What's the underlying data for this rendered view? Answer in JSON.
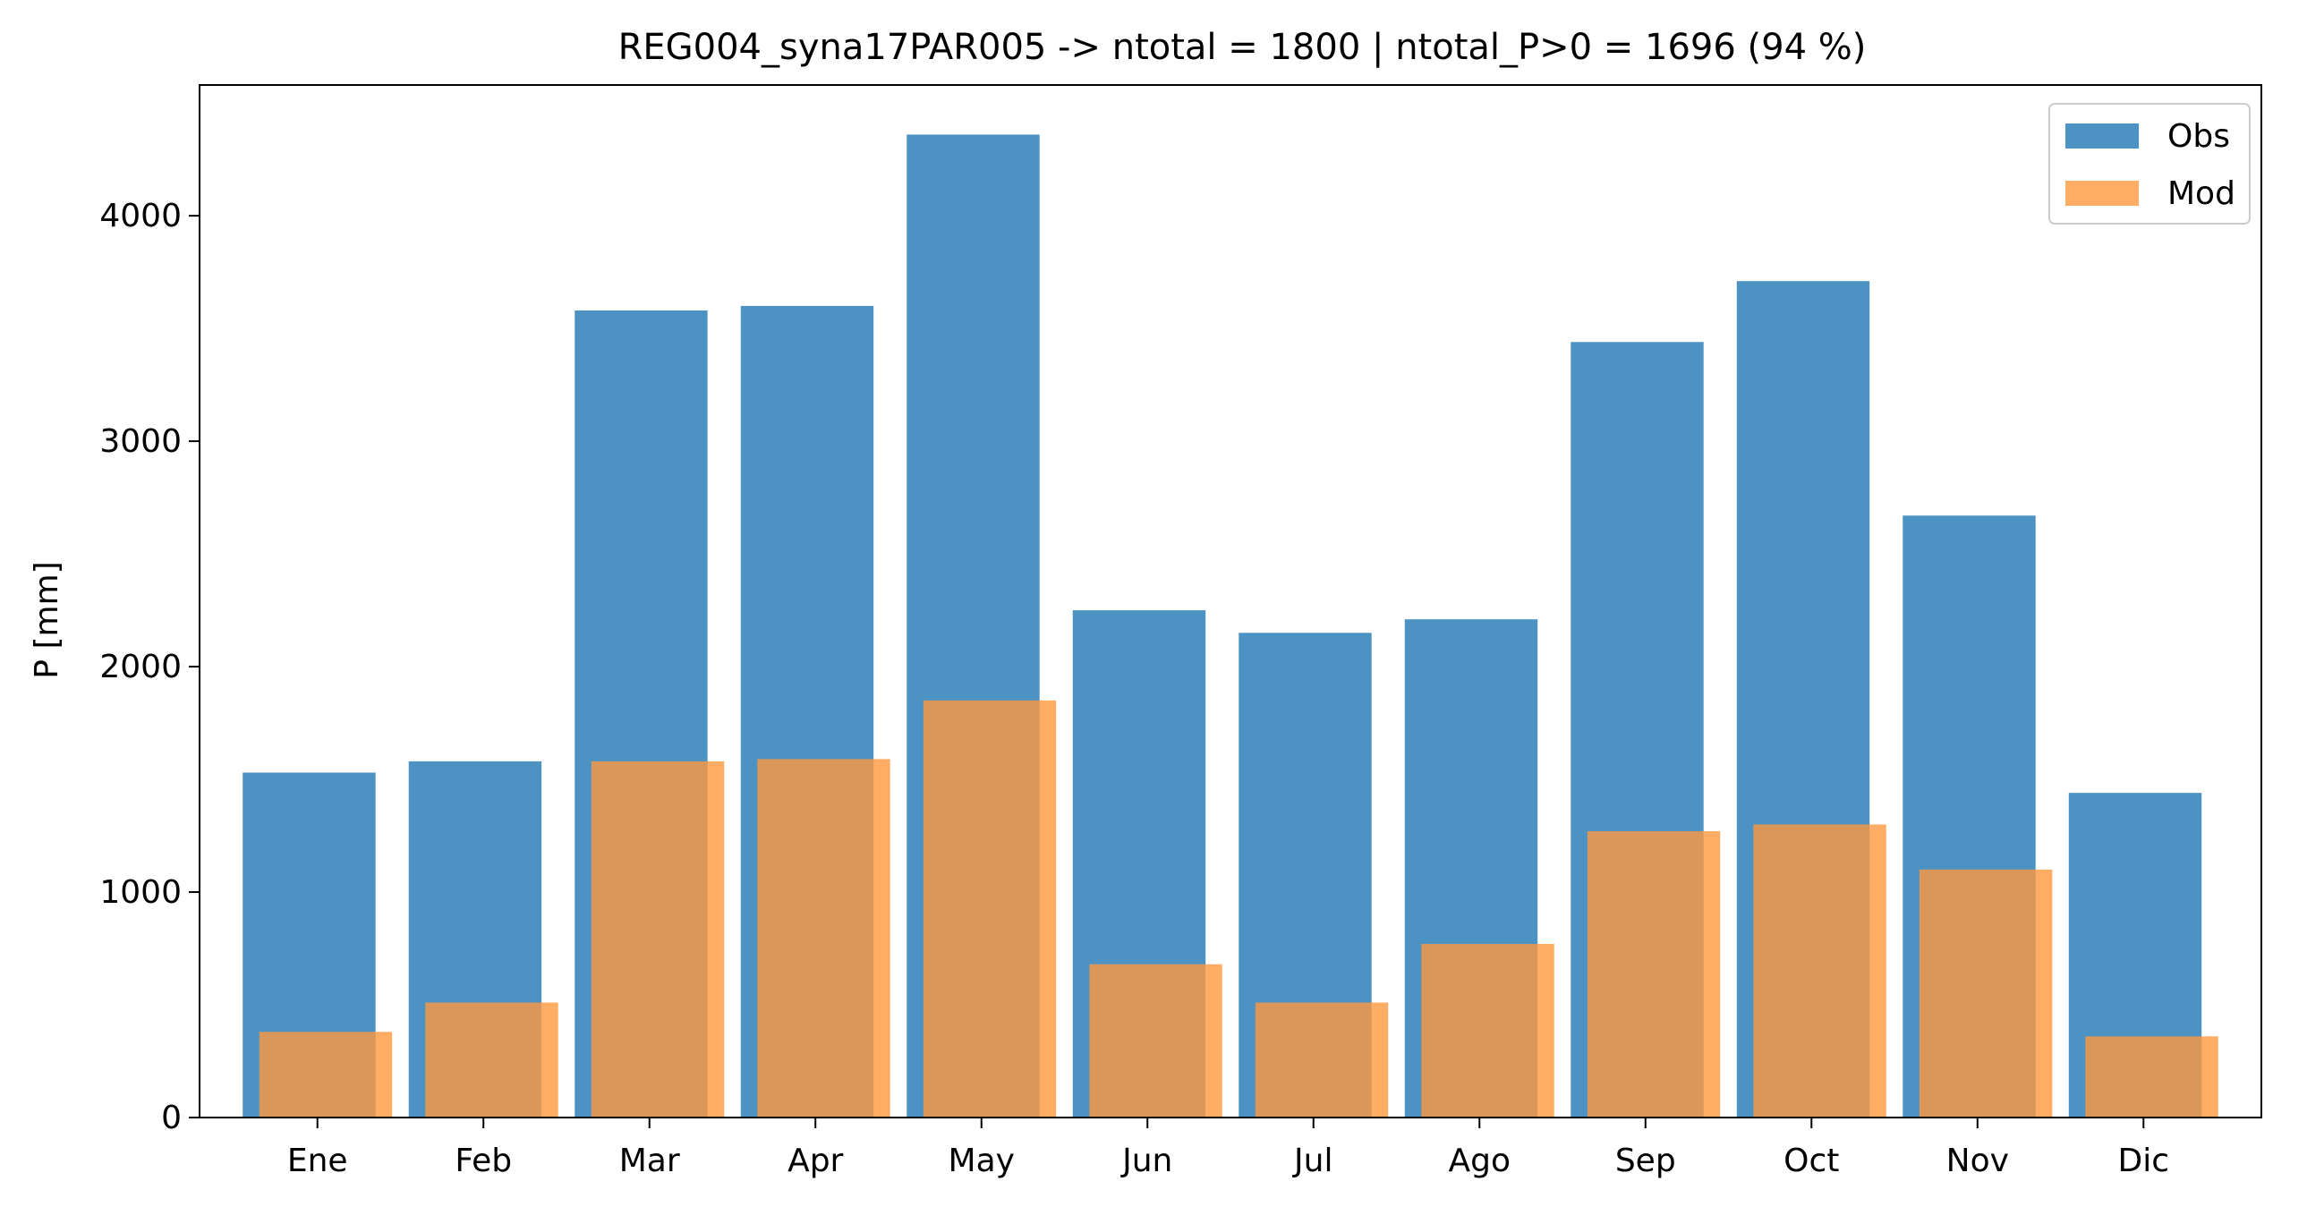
{
  "chart_data": {
    "type": "bar",
    "title": "REG004_syna17PAR005 -> ntotal = 1800 | ntotal_P>0 = 1696 (94 %)",
    "xlabel": "",
    "ylabel": "P [mm]",
    "categories": [
      "Ene",
      "Feb",
      "Mar",
      "Apr",
      "May",
      "Jun",
      "Jul",
      "Ago",
      "Sep",
      "Oct",
      "Nov",
      "Dic"
    ],
    "series": [
      {
        "name": "Obs",
        "color": "#4c92c3",
        "values": [
          1530,
          1580,
          3580,
          3600,
          4360,
          2250,
          2150,
          2210,
          3440,
          3710,
          2670,
          1440
        ]
      },
      {
        "name": "Mod",
        "color": "#ff983e",
        "values": [
          380,
          510,
          1580,
          1590,
          1850,
          680,
          510,
          770,
          1270,
          1300,
          1100,
          360
        ]
      }
    ],
    "ylim": [
      0,
      4580
    ],
    "yticks": [
      0,
      1000,
      2000,
      3000,
      4000
    ],
    "yticks_labels": [
      "0",
      "1000",
      "2000",
      "3000",
      "4000"
    ],
    "grid": false,
    "legend": "top-right"
  }
}
